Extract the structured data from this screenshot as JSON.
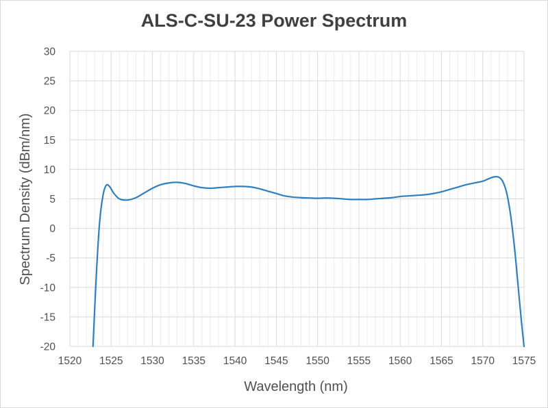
{
  "chart_data": {
    "type": "line",
    "title": "ALS-C-SU-23 Power Spectrum",
    "xlabel": "Wavelength (nm)",
    "ylabel": "Spectrum Density (dBm/nm)",
    "xlim": [
      1520,
      1575
    ],
    "ylim": [
      -20,
      30
    ],
    "x_ticks": [
      "1520",
      "1525",
      "1530",
      "1535",
      "1540",
      "1545",
      "1550",
      "1555",
      "1560",
      "1565",
      "1570",
      "1575"
    ],
    "y_ticks": [
      "30",
      "25",
      "20",
      "15",
      "10",
      "5",
      "0",
      "-5",
      "-10",
      "-15",
      "-20"
    ],
    "x_minor_step": 1,
    "grid": true,
    "legend": "none",
    "line_color": "#2e7fbf",
    "series": [
      {
        "x": [
          1522.8,
          1523.2,
          1523.6,
          1524.0,
          1524.4,
          1524.8,
          1525.3,
          1526.0,
          1527.0,
          1528.0,
          1529.0,
          1530.0,
          1531.0,
          1532.0,
          1533.0,
          1534.0,
          1535.0,
          1536.0,
          1537.0,
          1538.0,
          1539.0,
          1540.0,
          1541.0,
          1542.0,
          1543.0,
          1544.0,
          1545.0,
          1546.0,
          1547.0,
          1548.0,
          1549.0,
          1550.0,
          1551.0,
          1552.0,
          1553.0,
          1554.0,
          1555.0,
          1556.0,
          1557.0,
          1558.0,
          1559.0,
          1560.0,
          1561.0,
          1562.0,
          1563.0,
          1564.0,
          1565.0,
          1566.0,
          1567.0,
          1568.0,
          1569.0,
          1570.0,
          1570.7,
          1571.3,
          1571.9,
          1572.4,
          1572.9,
          1573.4,
          1573.9,
          1574.3,
          1574.7,
          1575.0
        ],
        "y": [
          -20.0,
          -8.0,
          1.0,
          5.5,
          7.3,
          7.1,
          6.0,
          5.0,
          4.8,
          5.2,
          6.0,
          6.8,
          7.4,
          7.7,
          7.8,
          7.6,
          7.2,
          6.9,
          6.8,
          6.9,
          7.0,
          7.1,
          7.1,
          7.0,
          6.7,
          6.3,
          5.9,
          5.5,
          5.3,
          5.2,
          5.15,
          5.1,
          5.15,
          5.1,
          5.0,
          4.9,
          4.9,
          4.9,
          5.0,
          5.1,
          5.2,
          5.4,
          5.5,
          5.6,
          5.7,
          5.9,
          6.2,
          6.6,
          7.0,
          7.4,
          7.7,
          8.0,
          8.4,
          8.7,
          8.7,
          8.0,
          6.0,
          2.0,
          -4.0,
          -10.0,
          -16.0,
          -20.0
        ]
      }
    ]
  }
}
